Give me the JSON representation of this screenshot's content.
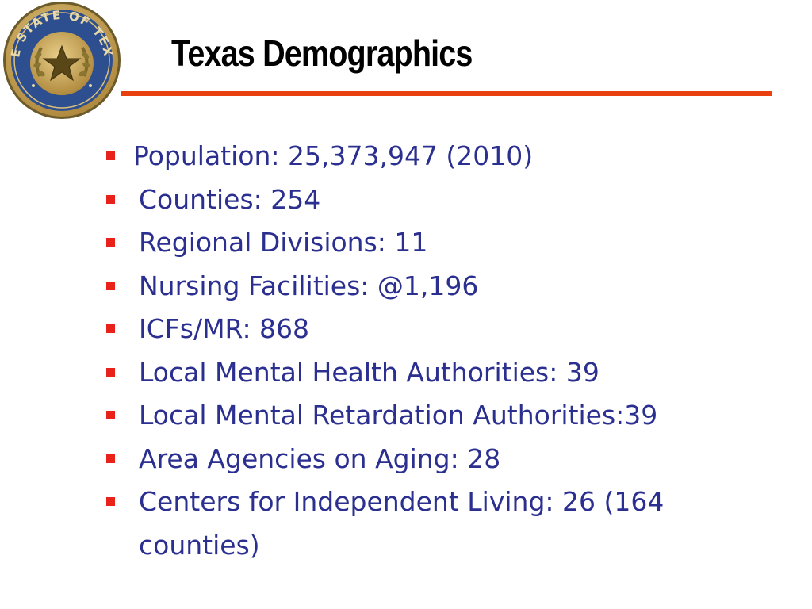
{
  "slide": {
    "title": "Texas Demographics",
    "seal": {
      "icon": "texas-state-seal-icon",
      "lettering": "THE STATE OF TEXAS"
    },
    "accent_color": "#e8410f",
    "bullet_color": "#e8211a",
    "text_color": "#2b2f8f",
    "bullets": [
      "Population: 25,373,947 (2010)",
      "Counties: 254",
      "Regional Divisions: 11",
      "Nursing Facilities: @1,196",
      "ICFs/MR: 868",
      "Local Mental Health Authorities: 39",
      "Local Mental Retardation Authorities:39",
      "Area Agencies on Aging: 28",
      "Centers for Independent Living: 26 (164 counties)"
    ]
  }
}
